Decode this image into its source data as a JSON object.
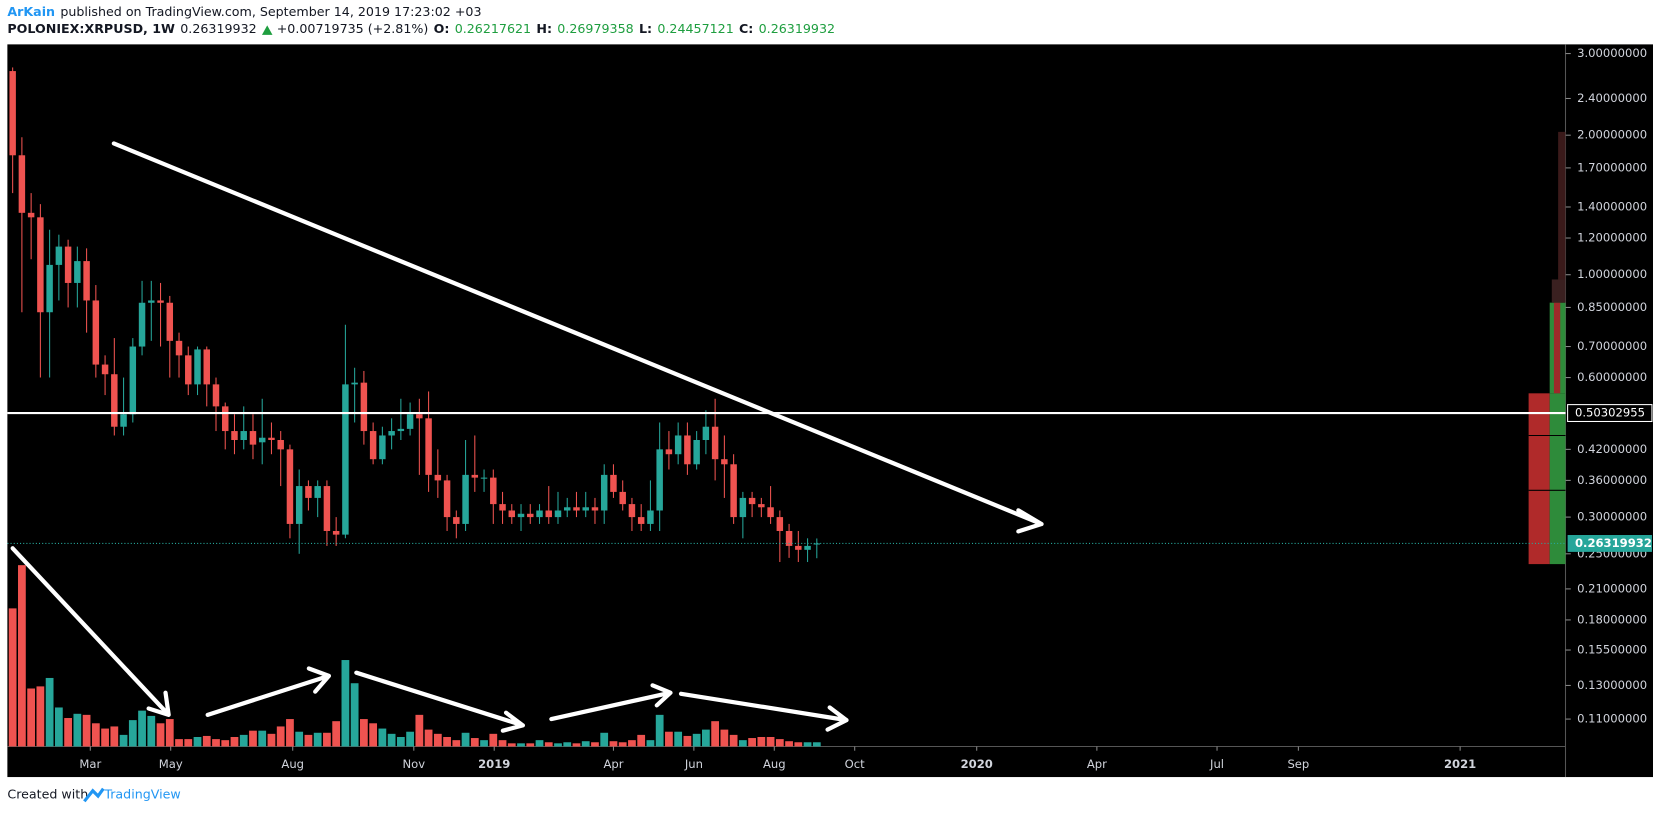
{
  "header": {
    "author": "ArKain",
    "published": "published on TradingView.com, September 14, 2019 17:23:02 +03",
    "symbol": "POLONIEX:XRPUSD, 1W",
    "price": "0.26319932",
    "change": "+0.00719735 (+2.81%)",
    "o_label": "O:",
    "o": "0.26217621",
    "h_label": "H:",
    "h": "0.26979358",
    "l_label": "L:",
    "l": "0.24457121",
    "c_label": "C:",
    "c": "0.26319932"
  },
  "footer": {
    "created": "Created with",
    "brand": "TradingView"
  },
  "chart_data": {
    "type": "candlestick",
    "log_scale": true,
    "up_color": "#26a69a",
    "down_color": "#ef5350",
    "open": [
      2.75,
      1.81,
      1.36,
      1.33,
      0.83,
      1.05,
      1.15,
      0.96,
      1.07,
      0.88,
      0.64,
      0.61,
      0.47,
      0.5,
      0.7,
      0.87,
      0.88,
      0.87,
      0.72,
      0.67,
      0.58,
      0.69,
      0.58,
      0.52,
      0.46,
      0.44,
      0.46,
      0.435,
      0.445,
      0.44,
      0.42,
      0.29,
      0.35,
      0.33,
      0.35,
      0.28,
      0.275,
      0.58,
      0.585,
      0.46,
      0.4,
      0.45,
      0.46,
      0.465,
      0.5,
      0.49,
      0.37,
      0.36,
      0.3,
      0.29,
      0.37,
      0.365,
      0.365,
      0.32,
      0.31,
      0.3,
      0.305,
      0.3,
      0.31,
      0.3,
      0.31,
      0.315,
      0.31,
      0.315,
      0.31,
      0.37,
      0.34,
      0.32,
      0.3,
      0.29,
      0.31,
      0.42,
      0.41,
      0.45,
      0.39,
      0.44,
      0.47,
      0.4,
      0.39,
      0.3,
      0.33,
      0.32,
      0.315,
      0.3,
      0.28,
      0.26,
      0.255,
      0.26217621
    ],
    "high": [
      2.8,
      1.98,
      1.5,
      1.42,
      1.25,
      1.22,
      1.19,
      1.15,
      1.14,
      0.95,
      0.67,
      0.73,
      0.6,
      0.73,
      0.97,
      0.97,
      0.96,
      0.9,
      0.75,
      0.7,
      0.7,
      0.7,
      0.6,
      0.53,
      0.5,
      0.52,
      0.5,
      0.54,
      0.48,
      0.46,
      0.43,
      0.38,
      0.36,
      0.36,
      0.36,
      0.3,
      0.78,
      0.63,
      0.62,
      0.48,
      0.47,
      0.49,
      0.54,
      0.53,
      0.54,
      0.56,
      0.42,
      0.37,
      0.31,
      0.44,
      0.45,
      0.38,
      0.38,
      0.34,
      0.32,
      0.32,
      0.32,
      0.32,
      0.35,
      0.34,
      0.33,
      0.34,
      0.34,
      0.33,
      0.39,
      0.39,
      0.36,
      0.33,
      0.32,
      0.36,
      0.48,
      0.46,
      0.48,
      0.48,
      0.46,
      0.51,
      0.54,
      0.45,
      0.41,
      0.34,
      0.34,
      0.33,
      0.35,
      0.31,
      0.29,
      0.28,
      0.27,
      0.26979358
    ],
    "low": [
      1.5,
      0.83,
      1.08,
      0.6,
      0.6,
      0.88,
      0.85,
      0.85,
      0.75,
      0.6,
      0.55,
      0.45,
      0.45,
      0.48,
      0.67,
      0.72,
      0.7,
      0.6,
      0.6,
      0.55,
      0.55,
      0.52,
      0.46,
      0.42,
      0.41,
      0.42,
      0.4,
      0.39,
      0.41,
      0.35,
      0.27,
      0.25,
      0.31,
      0.3,
      0.26,
      0.26,
      0.27,
      0.48,
      0.43,
      0.39,
      0.39,
      0.42,
      0.44,
      0.45,
      0.37,
      0.34,
      0.33,
      0.28,
      0.27,
      0.28,
      0.34,
      0.34,
      0.29,
      0.29,
      0.29,
      0.28,
      0.29,
      0.29,
      0.29,
      0.29,
      0.3,
      0.3,
      0.3,
      0.29,
      0.29,
      0.33,
      0.31,
      0.28,
      0.28,
      0.28,
      0.28,
      0.38,
      0.39,
      0.37,
      0.38,
      0.41,
      0.36,
      0.33,
      0.29,
      0.27,
      0.3,
      0.3,
      0.29,
      0.24,
      0.245,
      0.24,
      0.24,
      0.24457121
    ],
    "close": [
      1.81,
      1.36,
      1.33,
      0.83,
      1.05,
      1.15,
      0.96,
      1.07,
      0.88,
      0.64,
      0.61,
      0.47,
      0.5,
      0.7,
      0.87,
      0.88,
      0.87,
      0.72,
      0.67,
      0.58,
      0.69,
      0.58,
      0.52,
      0.46,
      0.44,
      0.46,
      0.43,
      0.445,
      0.44,
      0.42,
      0.29,
      0.35,
      0.33,
      0.35,
      0.28,
      0.275,
      0.58,
      0.585,
      0.46,
      0.4,
      0.45,
      0.46,
      0.465,
      0.5,
      0.49,
      0.37,
      0.36,
      0.3,
      0.29,
      0.37,
      0.365,
      0.365,
      0.32,
      0.31,
      0.3,
      0.305,
      0.3,
      0.31,
      0.3,
      0.31,
      0.315,
      0.31,
      0.315,
      0.31,
      0.37,
      0.34,
      0.32,
      0.3,
      0.29,
      0.31,
      0.42,
      0.41,
      0.45,
      0.39,
      0.44,
      0.47,
      0.4,
      0.39,
      0.3,
      0.33,
      0.32,
      0.315,
      0.3,
      0.28,
      0.26,
      0.255,
      0.26,
      0.26319932
    ],
    "volume": [
      131,
      172,
      55,
      57,
      65,
      37,
      27,
      31,
      30,
      22,
      17,
      19,
      11,
      25,
      34,
      29,
      22,
      26,
      7,
      7,
      9,
      10,
      7,
      6,
      9,
      11,
      15,
      15,
      12,
      19,
      26,
      14,
      11,
      13,
      13,
      24,
      82,
      60,
      26,
      22,
      17,
      12,
      9,
      14,
      30,
      16,
      12,
      9,
      6,
      13,
      8,
      6,
      12,
      6,
      3,
      3,
      3,
      6,
      4,
      3,
      4,
      3,
      5,
      4,
      13,
      5,
      4,
      6,
      11,
      6,
      30,
      14,
      14,
      10,
      12,
      16,
      24,
      16,
      11,
      6,
      8,
      9,
      9,
      7,
      5,
      4,
      4,
      4
    ],
    "ylim": [
      0.096,
      3.14
    ],
    "yticks": [
      {
        "value": 3.0,
        "label": "3.00000000"
      },
      {
        "value": 2.4,
        "label": "2.40000000"
      },
      {
        "value": 2.0,
        "label": "2.00000000"
      },
      {
        "value": 1.7,
        "label": "1.70000000"
      },
      {
        "value": 1.4,
        "label": "1.40000000"
      },
      {
        "value": 1.2,
        "label": "1.20000000"
      },
      {
        "value": 1.0,
        "label": "1.00000000"
      },
      {
        "value": 0.85,
        "label": "0.85000000"
      },
      {
        "value": 0.7,
        "label": "0.70000000"
      },
      {
        "value": 0.6,
        "label": "0.60000000"
      },
      {
        "value": 0.42,
        "label": "0.42000000"
      },
      {
        "value": 0.36,
        "label": "0.36000000"
      },
      {
        "value": 0.3,
        "label": "0.30000000"
      },
      {
        "value": 0.25,
        "label": "0.25000000"
      },
      {
        "value": 0.21,
        "label": "0.21000000"
      },
      {
        "value": 0.18,
        "label": "0.18000000"
      },
      {
        "value": 0.155,
        "label": "0.15500000"
      },
      {
        "value": 0.13,
        "label": "0.13000000"
      },
      {
        "value": 0.11,
        "label": "0.11000000"
      }
    ],
    "xlim": [
      -0.57,
      168.0
    ],
    "xticks": [
      {
        "value": 8.4,
        "label": "Mar"
      },
      {
        "value": 17.1,
        "label": "May"
      },
      {
        "value": 30.3,
        "label": "Aug"
      },
      {
        "value": 43.4,
        "label": "Nov"
      },
      {
        "value": 52.1,
        "label": "2019"
      },
      {
        "value": 65,
        "label": "Apr"
      },
      {
        "value": 73.7,
        "label": "Jun"
      },
      {
        "value": 82.4,
        "label": "Aug"
      },
      {
        "value": 91.1,
        "label": "Oct"
      },
      {
        "value": 104.3,
        "label": "2020"
      },
      {
        "value": 117.3,
        "label": "Apr"
      },
      {
        "value": 130.3,
        "label": "Jul"
      },
      {
        "value": 139.1,
        "label": "Sep"
      },
      {
        "value": 156.6,
        "label": "2021"
      }
    ],
    "hline": 0.50302955,
    "last_price": 0.26319932
  }
}
